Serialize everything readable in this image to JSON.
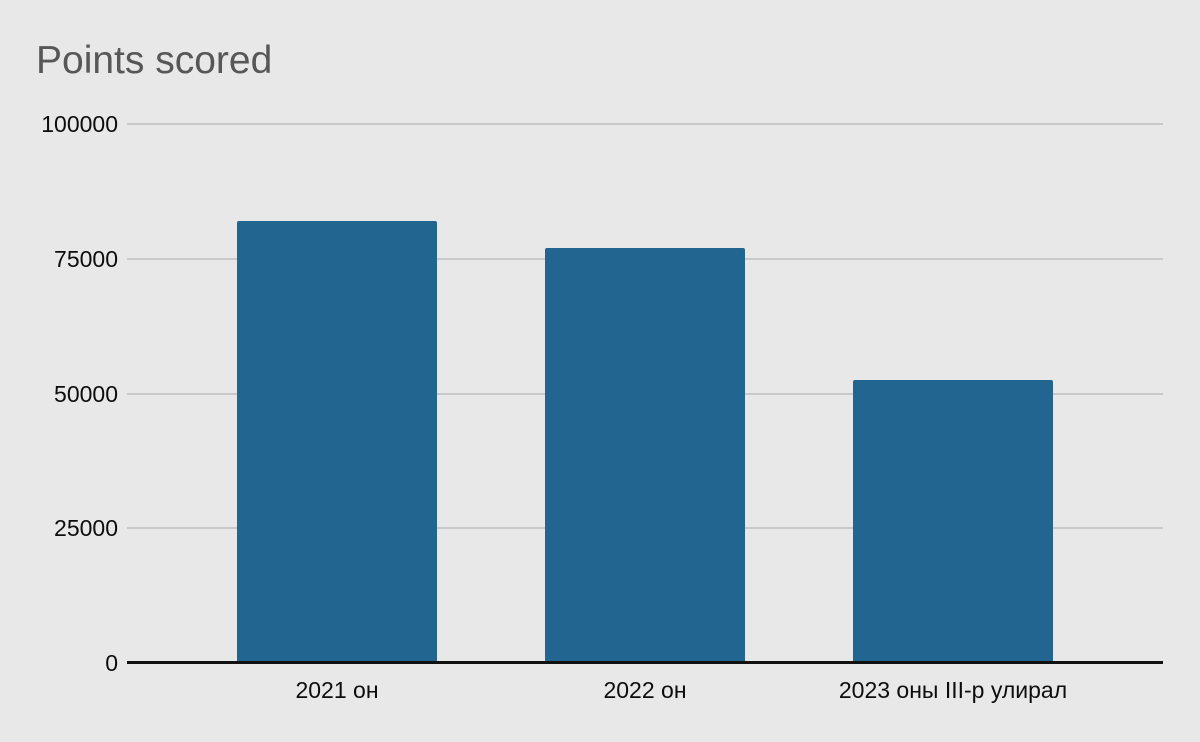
{
  "page_title": "Points scored",
  "chart_data": {
    "type": "bar",
    "title": "Points scored",
    "categories": [
      "2021 он",
      "2022 он",
      "2023 оны III-р улирал"
    ],
    "values": [
      82000,
      77000,
      52500
    ],
    "series": [
      {
        "name": "Points scored",
        "values": [
          82000,
          77000,
          52500
        ]
      }
    ],
    "xlabel": "",
    "ylabel": "",
    "ylim": [
      0,
      100000
    ],
    "yticks": [
      0,
      25000,
      50000,
      75000,
      100000
    ],
    "grid": true,
    "legend_position": "none",
    "colors": {
      "bar": "#216590",
      "background": "#e8e8e8",
      "gridline": "#c9c9c9",
      "zero_axis": "#111111",
      "title_text": "#575757",
      "tick_text": "#0d0d0d"
    }
  }
}
